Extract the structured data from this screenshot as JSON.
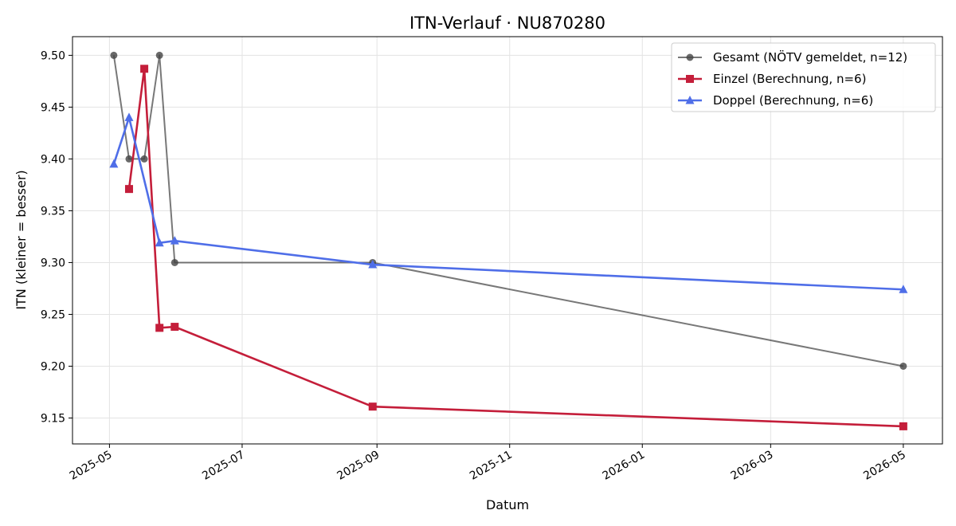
{
  "chart_data": {
    "type": "line",
    "title": "ITN-Verlauf · NU870280",
    "xlabel": "Datum",
    "ylabel": "ITN  (kleiner = besser)",
    "x_type": "date",
    "xlim": [
      "2025-04-14",
      "2026-05-19"
    ],
    "ylim": [
      9.125,
      9.518
    ],
    "x_ticks": [
      "2025-05-01",
      "2025-07-01",
      "2025-09-01",
      "2025-11-01",
      "2026-01-01",
      "2026-03-01",
      "2026-05-01"
    ],
    "x_tick_labels": [
      "2025-05",
      "2025-07",
      "2025-09",
      "2025-11",
      "2026-01",
      "2026-03",
      "2026-05"
    ],
    "y_ticks": [
      9.15,
      9.2,
      9.25,
      9.3,
      9.35,
      9.4,
      9.45,
      9.5
    ],
    "y_tick_labels": [
      "9.15",
      "9.20",
      "9.25",
      "9.30",
      "9.35",
      "9.40",
      "9.45",
      "9.50"
    ],
    "grid": true,
    "legend_position": "top-right",
    "series": [
      {
        "name": "Gesamt (NÖTV gemeldet, n=12)",
        "color": "#444444",
        "marker": "circle",
        "x": [
          "2025-05-03",
          "2025-05-10",
          "2025-05-17",
          "2025-05-24",
          "2025-05-31",
          "2025-08-30",
          "2026-05-01"
        ],
        "y": [
          9.5,
          9.4,
          9.4,
          9.5,
          9.3,
          9.3,
          9.2
        ]
      },
      {
        "name": "Einzel (Berechnung, n=6)",
        "color": "#c41e3a",
        "marker": "square",
        "x": [
          "2025-05-10",
          "2025-05-17",
          "2025-05-24",
          "2025-05-31",
          "2025-08-30",
          "2026-05-01"
        ],
        "y": [
          9.371,
          9.487,
          9.237,
          9.238,
          9.161,
          9.142
        ]
      },
      {
        "name": "Doppel (Berechnung, n=6)",
        "color": "#4f6ee8",
        "marker": "triangle",
        "x": [
          "2025-05-03",
          "2025-05-10",
          "2025-05-24",
          "2025-05-31",
          "2025-08-30",
          "2026-05-01"
        ],
        "y": [
          9.395,
          9.44,
          9.319,
          9.321,
          9.298,
          9.274
        ]
      }
    ]
  }
}
